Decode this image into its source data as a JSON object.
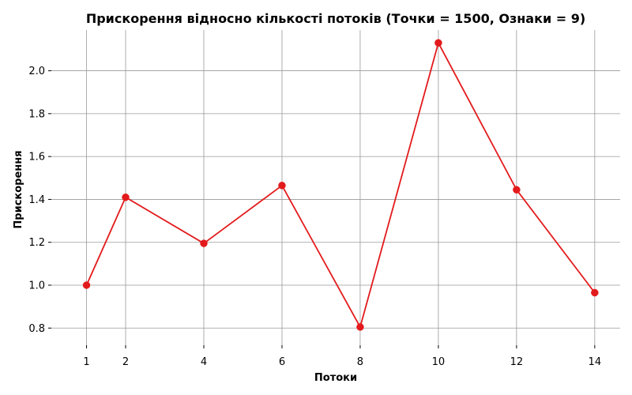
{
  "chart_data": {
    "type": "line",
    "title": "Прискорення відносно кількості потоків (Точки = 1500, Ознаки = 9)",
    "xlabel": "Потоки",
    "ylabel": "Прискорення",
    "x": [
      1,
      2,
      4,
      6,
      8,
      10,
      12,
      14
    ],
    "x_ticks": [
      1,
      2,
      4,
      6,
      8,
      10,
      12,
      14
    ],
    "y_ticks": [
      0.8,
      1.0,
      1.2,
      1.4,
      1.6,
      1.8,
      2.0
    ],
    "y_tick_labels": [
      "0.8",
      "1.0",
      "1.2",
      "1.4",
      "1.6",
      "1.8",
      "2.0"
    ],
    "series": [
      {
        "values": [
          1.0,
          1.41,
          1.195,
          1.465,
          0.805,
          2.13,
          1.445,
          0.965
        ],
        "color": "#e31a1c",
        "marker": "circle"
      }
    ],
    "xlim": [
      0.1,
      14.65
    ],
    "ylim": [
      0.72,
      2.19
    ],
    "grid": true,
    "legend": "none"
  }
}
